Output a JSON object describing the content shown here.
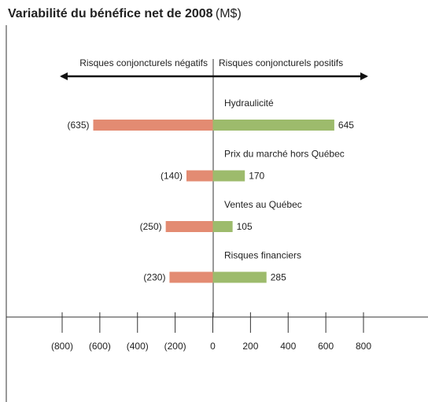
{
  "chart_data": {
    "type": "bar",
    "orientation": "horizontal",
    "title": "Variabilité du bénéfice net de 2008",
    "subtitle": "(M$)",
    "categories": [
      "Hydraulicité",
      "Prix du marché hors Québec",
      "Ventes au Québec",
      "Risques financiers"
    ],
    "series": [
      {
        "name": "Risques conjoncturels négatifs",
        "color": "#e38b72",
        "values": [
          -635,
          -140,
          -250,
          -230
        ],
        "value_labels": [
          "(635)",
          "(140)",
          "(250)",
          "(230)"
        ]
      },
      {
        "name": "Risques conjoncturels positifs",
        "color": "#9dbb6c",
        "values": [
          645,
          170,
          105,
          285
        ]
      }
    ],
    "xlim": [
      -800,
      800
    ],
    "xticks": [
      {
        "value": -800,
        "label": "(800)"
      },
      {
        "value": -600,
        "label": "(600)"
      },
      {
        "value": -400,
        "label": "(400)"
      },
      {
        "value": -200,
        "label": "(200)"
      },
      0,
      200,
      400,
      600,
      800
    ]
  }
}
